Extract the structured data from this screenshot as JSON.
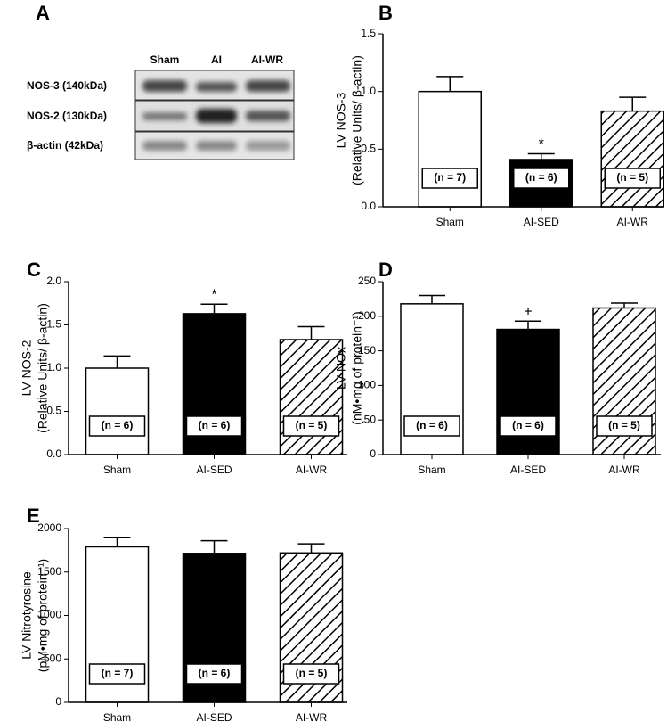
{
  "blot": {
    "letter": "A",
    "columns": [
      "Sham",
      "AI",
      "AI-WR"
    ],
    "rows": [
      "NOS-3 (140kDa)",
      "NOS-2 (130kDa)",
      "β-actin (42kDa)"
    ]
  },
  "chart_data": [
    {
      "type": "bar",
      "letter": "B",
      "ylabel": [
        "LV NOS-3",
        "(Relative Units/ β-actin)"
      ],
      "categories": [
        "Sham",
        "AI-SED",
        "AI-WR"
      ],
      "values": [
        1.0,
        0.41,
        0.83
      ],
      "errors": [
        0.13,
        0.05,
        0.12
      ],
      "fills": [
        "white",
        "black",
        "hatched"
      ],
      "n_labels": [
        "(n = 7)",
        "(n = 6)",
        "(n = 5)"
      ],
      "significance": [
        null,
        "*",
        null
      ],
      "ylim": [
        0,
        1.5
      ],
      "yticks": [
        {
          "value": 0,
          "label": "0.0"
        },
        {
          "value": 0.5,
          "label": "0.5"
        },
        {
          "value": 1,
          "label": "1.0"
        },
        {
          "value": 1.5,
          "label": "1.5"
        }
      ]
    },
    {
      "type": "bar",
      "letter": "C",
      "ylabel": [
        "LV NOS-2",
        "(Relative Units/ β-actin)"
      ],
      "categories": [
        "Sham",
        "AI-SED",
        "AI-WR"
      ],
      "values": [
        1.0,
        1.63,
        1.33
      ],
      "errors": [
        0.14,
        0.11,
        0.15
      ],
      "fills": [
        "white",
        "black",
        "hatched"
      ],
      "n_labels": [
        "(n = 6)",
        "(n = 6)",
        "(n = 5)"
      ],
      "significance": [
        null,
        "*",
        null
      ],
      "ylim": [
        0,
        2
      ],
      "yticks": [
        {
          "value": 0,
          "label": "0.0"
        },
        {
          "value": 0.5,
          "label": "0.5"
        },
        {
          "value": 1,
          "label": "1.0"
        },
        {
          "value": 1.5,
          "label": "1.5"
        },
        {
          "value": 2,
          "label": "2.0"
        }
      ]
    },
    {
      "type": "bar",
      "letter": "D",
      "ylabel": [
        "LV NOx",
        "(nM•mg of protein⁻¹)"
      ],
      "categories": [
        "Sham",
        "AI-SED",
        "AI-WR"
      ],
      "values": [
        218,
        181,
        212
      ],
      "errors": [
        12,
        12,
        7
      ],
      "fills": [
        "white",
        "black",
        "hatched"
      ],
      "n_labels": [
        "(n = 6)",
        "(n = 6)",
        "(n = 5)"
      ],
      "significance": [
        null,
        "+",
        null
      ],
      "ylim": [
        0,
        250
      ],
      "yticks": [
        0,
        50,
        100,
        150,
        200,
        250
      ]
    },
    {
      "type": "bar",
      "letter": "E",
      "ylabel": [
        "LV Nitrotyrosine",
        "(pM•mg of protein⁻¹)"
      ],
      "categories": [
        "Sham",
        "AI-SED",
        "AI-WR"
      ],
      "values": [
        1790,
        1715,
        1720
      ],
      "errors": [
        105,
        145,
        105
      ],
      "fills": [
        "white",
        "black",
        "hatched"
      ],
      "n_labels": [
        "(n = 7)",
        "(n = 6)",
        "(n = 5)"
      ],
      "significance": [
        null,
        null,
        null
      ],
      "ylim": [
        0,
        2000
      ],
      "yticks": [
        0,
        500,
        1000,
        1500,
        2000
      ]
    }
  ]
}
